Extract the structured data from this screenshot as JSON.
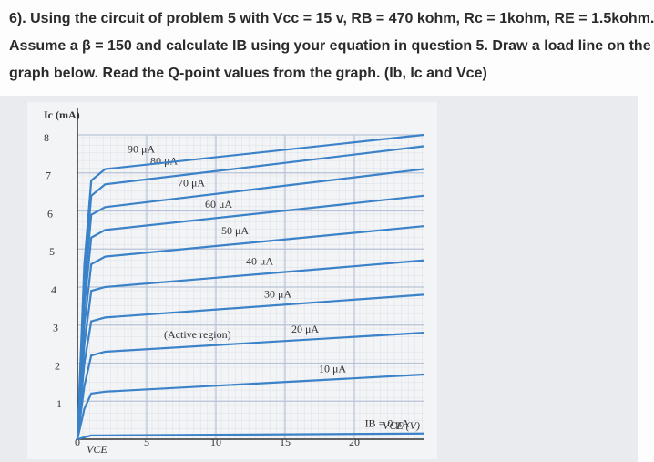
{
  "question": {
    "lines": [
      "6). Using the circuit of problem 5 with Vcc = 15 v, RB = 470 kohm, Rc = 1kohm, RE = 1.5kohm.",
      "Assume a β = 150 and calculate IB using your equation in question 5.  Draw a load line on the",
      "graph below. Read the Q-point values from the graph. (Ib, Ic and Vce)"
    ]
  },
  "chart_data": {
    "type": "line",
    "y_label": "Ic (mA)",
    "x_label": "VCE (V)",
    "annotations": [
      "(Active region)",
      "VCE"
    ],
    "x": [
      0,
      0.5,
      1,
      2,
      25
    ],
    "xlim": [
      0,
      25
    ],
    "xticks": [
      0,
      5,
      10,
      15,
      20
    ],
    "ylim": [
      0,
      8
    ],
    "yticks": [
      1,
      2,
      3,
      4,
      5,
      6,
      7,
      8
    ],
    "grid": true,
    "series": [
      {
        "name": "IB = 0 μA",
        "color": "#3b82c8",
        "values": [
          0,
          0.05,
          0.1,
          0.1,
          0.15
        ]
      },
      {
        "name": "10 μA",
        "color": "#3b82c8",
        "values": [
          0,
          0.8,
          1.2,
          1.25,
          1.7
        ]
      },
      {
        "name": "20 μA",
        "color": "#3b82c8",
        "values": [
          0,
          1.4,
          2.2,
          2.3,
          2.8
        ]
      },
      {
        "name": "30 μA",
        "color": "#3b82c8",
        "values": [
          0,
          2.0,
          3.1,
          3.2,
          3.8
        ]
      },
      {
        "name": "40 μA",
        "color": "#3b82c8",
        "values": [
          0,
          2.5,
          3.9,
          4.0,
          4.7
        ]
      },
      {
        "name": "50 μA",
        "color": "#3b82c8",
        "values": [
          0,
          3.0,
          4.6,
          4.8,
          5.6
        ]
      },
      {
        "name": "60 μA",
        "color": "#3b82c8",
        "values": [
          0,
          3.5,
          5.3,
          5.5,
          6.4
        ]
      },
      {
        "name": "70 μA",
        "color": "#3b82c8",
        "values": [
          0,
          3.9,
          5.9,
          6.1,
          7.1
        ]
      },
      {
        "name": "80 μA",
        "color": "#3b82c8",
        "values": [
          0,
          4.3,
          6.4,
          6.7,
          7.7
        ]
      },
      {
        "name": "90 μA",
        "color": "#3b82c8",
        "values": [
          0,
          4.6,
          6.8,
          7.1,
          8
        ]
      }
    ]
  }
}
